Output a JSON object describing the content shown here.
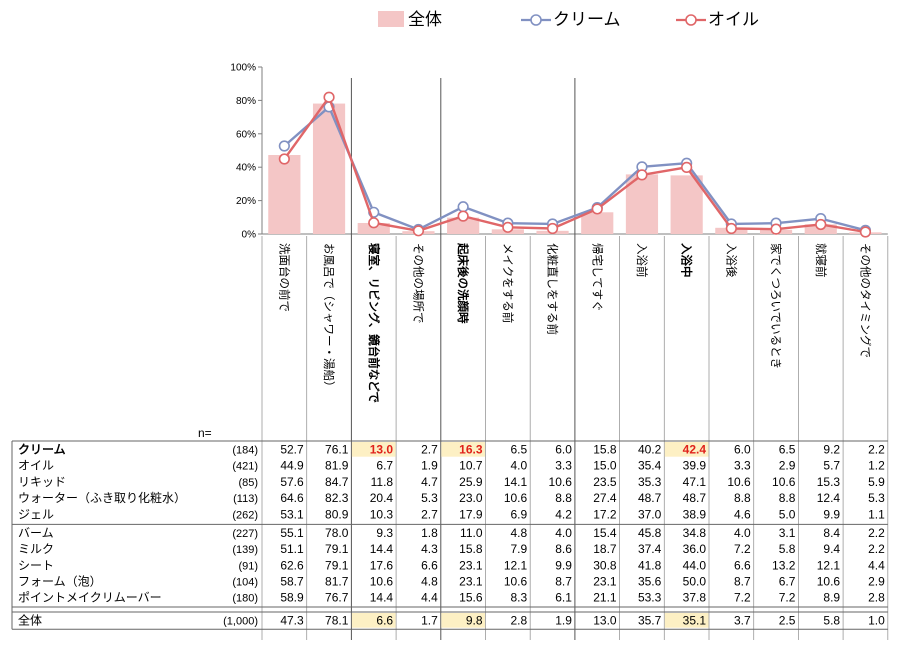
{
  "colors": {
    "bar": "#f4c6c6",
    "cream": "#8191c2",
    "oil": "#e06668",
    "highlight_bg": "#fdf0c4",
    "highlight_text": "#e0221b",
    "grid": "#7f7f7f"
  },
  "legend": [
    {
      "key": "total",
      "label": "全体",
      "shape": "bar"
    },
    {
      "key": "cream",
      "label": "クリーム",
      "shape": "line-marker"
    },
    {
      "key": "oil",
      "label": "オイル",
      "shape": "line-marker"
    }
  ],
  "n_header": "n=",
  "chart_data": {
    "type": "bar",
    "ylim": [
      0,
      100
    ],
    "yticks": [
      "0%",
      "20%",
      "40%",
      "60%",
      "80%",
      "100%"
    ],
    "categories": [
      "洗面台の前で",
      "お風呂で（シャワー・湯船）",
      "寝室、リビング、鏡台前などで",
      "その他の場所で",
      "起床後の洗顔時",
      "メイクをする前",
      "化粧直しをする前",
      "帰宅してすぐ",
      "入浴前",
      "入浴中",
      "入浴後",
      "家でくつろいでいるとき",
      "就寝前",
      "その他のタイミングで"
    ],
    "bold_categories": [
      2,
      4,
      9
    ],
    "group_separators_after": [
      1,
      3,
      6
    ],
    "series": [
      {
        "name": "全体",
        "type": "bar",
        "values": [
          47.3,
          78.1,
          6.6,
          1.7,
          9.8,
          2.8,
          1.9,
          13.0,
          35.7,
          35.1,
          3.7,
          2.5,
          5.8,
          1.0
        ]
      },
      {
        "name": "クリーム",
        "type": "line",
        "values": [
          52.7,
          76.1,
          13.0,
          2.7,
          16.3,
          6.5,
          6.0,
          15.8,
          40.2,
          42.4,
          6.0,
          6.5,
          9.2,
          2.2
        ]
      },
      {
        "name": "オイル",
        "type": "line",
        "values": [
          44.9,
          81.9,
          6.7,
          1.9,
          10.7,
          4.0,
          3.3,
          15.0,
          35.4,
          39.9,
          3.3,
          2.9,
          5.7,
          1.2
        ]
      }
    ]
  },
  "table": {
    "groups": [
      [
        {
          "label": "クリーム",
          "bold": true,
          "n": "(184)",
          "values": [
            "52.7",
            "76.1",
            "13.0",
            "2.7",
            "16.3",
            "6.5",
            "6.0",
            "15.8",
            "40.2",
            "42.4",
            "6.0",
            "6.5",
            "9.2",
            "2.2"
          ],
          "highlight": [
            2,
            4,
            9
          ]
        },
        {
          "label": "オイル",
          "bold": false,
          "n": "(421)",
          "values": [
            "44.9",
            "81.9",
            "6.7",
            "1.9",
            "10.7",
            "4.0",
            "3.3",
            "15.0",
            "35.4",
            "39.9",
            "3.3",
            "2.9",
            "5.7",
            "1.2"
          ],
          "highlight": []
        },
        {
          "label": "リキッド",
          "bold": false,
          "n": "(85)",
          "values": [
            "57.6",
            "84.7",
            "11.8",
            "4.7",
            "25.9",
            "14.1",
            "10.6",
            "23.5",
            "35.3",
            "47.1",
            "10.6",
            "10.6",
            "15.3",
            "5.9"
          ],
          "highlight": []
        },
        {
          "label": "ウォーター（ふき取り化粧水）",
          "bold": false,
          "n": "(113)",
          "values": [
            "64.6",
            "82.3",
            "20.4",
            "5.3",
            "23.0",
            "10.6",
            "8.8",
            "27.4",
            "48.7",
            "48.7",
            "8.8",
            "8.8",
            "12.4",
            "5.3"
          ],
          "highlight": []
        },
        {
          "label": "ジェル",
          "bold": false,
          "n": "(262)",
          "values": [
            "53.1",
            "80.9",
            "10.3",
            "2.7",
            "17.9",
            "6.9",
            "4.2",
            "17.2",
            "37.0",
            "38.9",
            "4.6",
            "5.0",
            "9.9",
            "1.1"
          ],
          "highlight": []
        }
      ],
      [
        {
          "label": "バーム",
          "bold": false,
          "n": "(227)",
          "values": [
            "55.1",
            "78.0",
            "9.3",
            "1.8",
            "11.0",
            "4.8",
            "4.0",
            "15.4",
            "45.8",
            "34.8",
            "4.0",
            "3.1",
            "8.4",
            "2.2"
          ],
          "highlight": []
        },
        {
          "label": "ミルク",
          "bold": false,
          "n": "(139)",
          "values": [
            "51.1",
            "79.1",
            "14.4",
            "4.3",
            "15.8",
            "7.9",
            "8.6",
            "18.7",
            "37.4",
            "36.0",
            "7.2",
            "5.8",
            "9.4",
            "2.2"
          ],
          "highlight": []
        },
        {
          "label": "シート",
          "bold": false,
          "n": "(91)",
          "values": [
            "62.6",
            "79.1",
            "17.6",
            "6.6",
            "23.1",
            "12.1",
            "9.9",
            "30.8",
            "41.8",
            "44.0",
            "6.6",
            "13.2",
            "12.1",
            "4.4"
          ],
          "highlight": []
        },
        {
          "label": "フォーム（泡）",
          "bold": false,
          "n": "(104)",
          "values": [
            "58.7",
            "81.7",
            "10.6",
            "4.8",
            "23.1",
            "10.6",
            "8.7",
            "23.1",
            "35.6",
            "50.0",
            "8.7",
            "6.7",
            "10.6",
            "2.9"
          ],
          "highlight": []
        },
        {
          "label": "ポイントメイクリムーバー",
          "bold": false,
          "n": "(180)",
          "values": [
            "58.9",
            "76.7",
            "14.4",
            "4.4",
            "15.6",
            "8.3",
            "6.1",
            "21.1",
            "53.3",
            "37.8",
            "7.2",
            "7.2",
            "8.9",
            "2.8"
          ],
          "highlight": []
        }
      ]
    ],
    "total_row": {
      "label": "全体",
      "bold": false,
      "n": "(1,000)",
      "values": [
        "47.3",
        "78.1",
        "6.6",
        "1.7",
        "9.8",
        "2.8",
        "1.9",
        "13.0",
        "35.7",
        "35.1",
        "3.7",
        "2.5",
        "5.8",
        "1.0"
      ],
      "highlight_bg_only": [
        2,
        4,
        9
      ]
    }
  }
}
